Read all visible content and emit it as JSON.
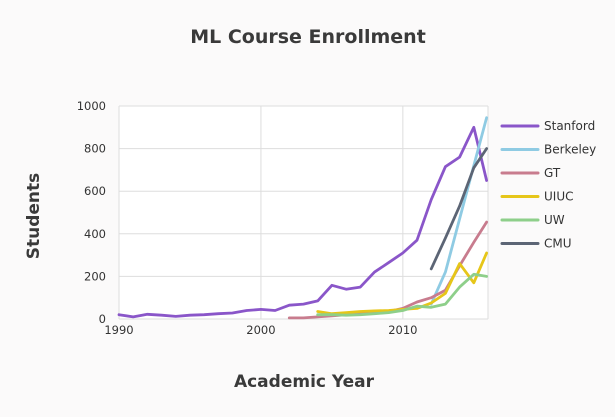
{
  "chart_data": {
    "type": "line",
    "title": "ML Course Enrollment",
    "xlabel": "Academic Year",
    "ylabel": "Students",
    "xlim": [
      1990,
      2016
    ],
    "ylim": [
      0,
      1000
    ],
    "xticks": [
      1990,
      2000,
      2010
    ],
    "yticks": [
      0,
      200,
      400,
      600,
      800,
      1000
    ],
    "grid": true,
    "legend_position": "right",
    "series": [
      {
        "name": "Stanford",
        "color": "#8a56c9",
        "points": [
          [
            1990,
            20
          ],
          [
            1991,
            10
          ],
          [
            1992,
            22
          ],
          [
            1993,
            18
          ],
          [
            1994,
            12
          ],
          [
            1995,
            18
          ],
          [
            1996,
            20
          ],
          [
            1997,
            25
          ],
          [
            1998,
            28
          ],
          [
            1999,
            40
          ],
          [
            2000,
            45
          ],
          [
            2001,
            40
          ],
          [
            2002,
            65
          ],
          [
            2003,
            70
          ],
          [
            2004,
            85
          ],
          [
            2005,
            158
          ],
          [
            2006,
            140
          ],
          [
            2007,
            150
          ],
          [
            2008,
            220
          ],
          [
            2009,
            265
          ],
          [
            2010,
            310
          ],
          [
            2011,
            370
          ],
          [
            2012,
            560
          ],
          [
            2013,
            715
          ],
          [
            2014,
            760
          ],
          [
            2015,
            900
          ],
          [
            2015.9,
            650
          ]
        ]
      },
      {
        "name": "Berkeley",
        "color": "#8fcbe3",
        "points": [
          [
            2012,
            70
          ],
          [
            2013,
            220
          ],
          [
            2014,
            470
          ],
          [
            2015,
            720
          ],
          [
            2015.9,
            945
          ]
        ]
      },
      {
        "name": "GT",
        "color": "#c87c8e",
        "points": [
          [
            2002,
            5
          ],
          [
            2003,
            5
          ],
          [
            2004,
            10
          ],
          [
            2005,
            15
          ],
          [
            2006,
            20
          ],
          [
            2007,
            25
          ],
          [
            2008,
            30
          ],
          [
            2009,
            35
          ],
          [
            2010,
            50
          ],
          [
            2011,
            80
          ],
          [
            2012,
            100
          ],
          [
            2013,
            135
          ],
          [
            2014,
            250
          ],
          [
            2015,
            360
          ],
          [
            2015.9,
            455
          ]
        ]
      },
      {
        "name": "UIUC",
        "color": "#e6c619",
        "points": [
          [
            2004,
            35
          ],
          [
            2005,
            25
          ],
          [
            2006,
            30
          ],
          [
            2007,
            35
          ],
          [
            2008,
            38
          ],
          [
            2009,
            40
          ],
          [
            2010,
            45
          ],
          [
            2011,
            50
          ],
          [
            2012,
            75
          ],
          [
            2013,
            120
          ],
          [
            2014,
            260
          ],
          [
            2015,
            170
          ],
          [
            2015.9,
            310
          ]
        ]
      },
      {
        "name": "UW",
        "color": "#8ecf8a",
        "points": [
          [
            2004,
            20
          ],
          [
            2005,
            20
          ],
          [
            2006,
            18
          ],
          [
            2007,
            20
          ],
          [
            2008,
            25
          ],
          [
            2009,
            30
          ],
          [
            2010,
            40
          ],
          [
            2011,
            60
          ],
          [
            2012,
            55
          ],
          [
            2013,
            70
          ],
          [
            2014,
            150
          ],
          [
            2015,
            210
          ],
          [
            2015.9,
            200
          ]
        ]
      },
      {
        "name": "CMU",
        "color": "#5c6575",
        "points": [
          [
            2012,
            235
          ],
          [
            2013,
            380
          ],
          [
            2014,
            530
          ],
          [
            2015,
            710
          ],
          [
            2015.9,
            800
          ]
        ]
      }
    ]
  }
}
